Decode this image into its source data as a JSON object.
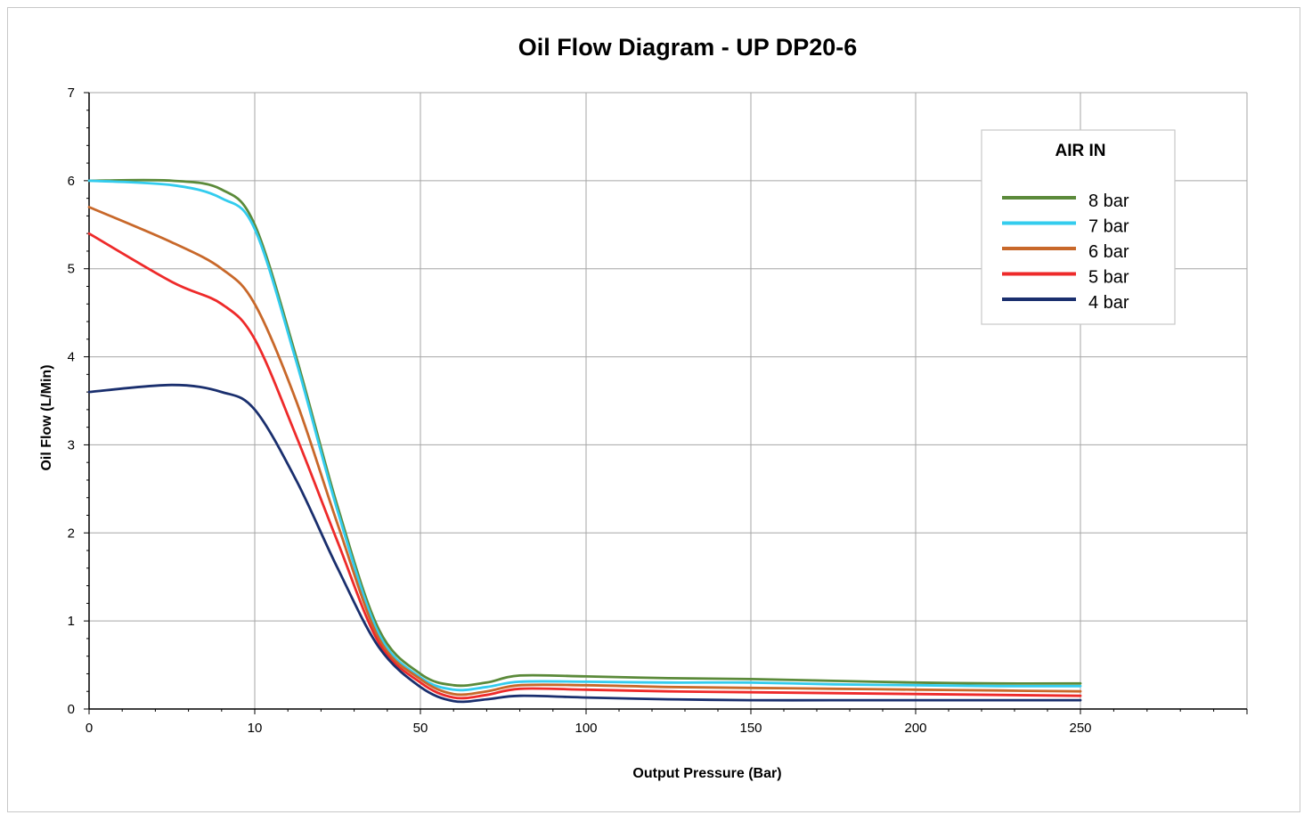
{
  "chart_data": {
    "type": "line",
    "title": "Oil Flow Diagram - UP DP20-6",
    "xlabel": "Output Pressure (Bar)",
    "ylabel": "Oil Flow (L/Min)",
    "x_tick_labels": [
      "0",
      "10",
      "50",
      "100",
      "150",
      "200",
      "250"
    ],
    "y_tick_labels": [
      "0",
      "1",
      "2",
      "3",
      "4",
      "5",
      "6",
      "7"
    ],
    "ylim": [
      0,
      7
    ],
    "grid": true,
    "legend": {
      "title": "AIR IN",
      "placement": "top-right"
    },
    "x_scale": "categorical ticks (0, 10, 50, 100, 150, 200, 250 at equal spacing)",
    "series": [
      {
        "name": "8 bar",
        "color": "#5b8a3a",
        "x": [
          0,
          5,
          8,
          10,
          20,
          30,
          40,
          50,
          60,
          70,
          80,
          100,
          125,
          150,
          175,
          200,
          225,
          250
        ],
        "values": [
          6.0,
          6.0,
          5.9,
          5.5,
          4.0,
          2.3,
          0.9,
          0.4,
          0.27,
          0.3,
          0.38,
          0.37,
          0.35,
          0.34,
          0.32,
          0.3,
          0.29,
          0.29
        ]
      },
      {
        "name": "7 bar",
        "color": "#33ccee",
        "x": [
          0,
          5,
          8,
          10,
          20,
          30,
          40,
          50,
          60,
          70,
          80,
          100,
          125,
          150,
          175,
          200,
          225,
          250
        ],
        "values": [
          6.0,
          5.95,
          5.8,
          5.45,
          3.95,
          2.25,
          0.85,
          0.36,
          0.22,
          0.25,
          0.31,
          0.31,
          0.3,
          0.3,
          0.28,
          0.27,
          0.26,
          0.26
        ]
      },
      {
        "name": "6 bar",
        "color": "#c8682a",
        "x": [
          0,
          5,
          8,
          10,
          20,
          30,
          40,
          50,
          60,
          70,
          80,
          100,
          125,
          150,
          175,
          200,
          225,
          250
        ],
        "values": [
          5.7,
          5.3,
          5.0,
          4.6,
          3.5,
          2.1,
          0.8,
          0.34,
          0.17,
          0.2,
          0.27,
          0.27,
          0.25,
          0.24,
          0.23,
          0.22,
          0.21,
          0.2
        ]
      },
      {
        "name": "5 bar",
        "color": "#ee2a2a",
        "x": [
          0,
          5,
          8,
          10,
          20,
          30,
          40,
          50,
          60,
          70,
          80,
          100,
          125,
          150,
          175,
          200,
          225,
          250
        ],
        "values": [
          5.4,
          4.85,
          4.6,
          4.2,
          3.1,
          1.9,
          0.75,
          0.3,
          0.13,
          0.16,
          0.23,
          0.22,
          0.2,
          0.19,
          0.18,
          0.17,
          0.16,
          0.15
        ]
      },
      {
        "name": "4 bar",
        "color": "#1a2f6e",
        "x": [
          0,
          5,
          8,
          10,
          20,
          30,
          40,
          50,
          60,
          70,
          80,
          100,
          125,
          150,
          175,
          200,
          225,
          250
        ],
        "values": [
          3.6,
          3.68,
          3.6,
          3.4,
          2.6,
          1.6,
          0.7,
          0.25,
          0.09,
          0.11,
          0.15,
          0.13,
          0.11,
          0.1,
          0.1,
          0.1,
          0.1,
          0.1
        ]
      }
    ]
  }
}
